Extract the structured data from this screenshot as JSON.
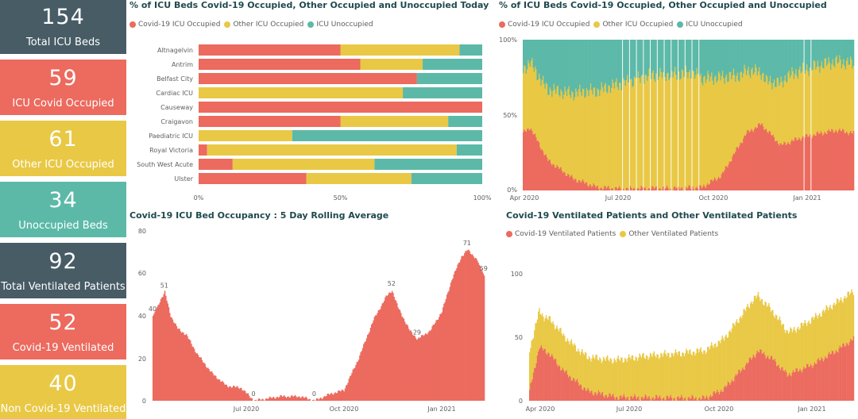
{
  "colors": {
    "covid": "#ec6a5e",
    "other": "#e9c845",
    "unoccupied": "#5cb9a8",
    "dark": "#485c66",
    "title": "#1f4a4e",
    "axis_text": "#605e5c"
  },
  "kpis": [
    {
      "value": "154",
      "label": "Total ICU Beds",
      "color": "#485c66"
    },
    {
      "value": "59",
      "label": "ICU Covid Occupied",
      "color": "#ec6a5e"
    },
    {
      "value": "61",
      "label": "Other ICU Occupied",
      "color": "#e9c845"
    },
    {
      "value": "34",
      "label": "Unoccupied Beds",
      "color": "#5cb9a8"
    },
    {
      "value": "92",
      "label": "Total Ventilated Patients",
      "color": "#485c66"
    },
    {
      "value": "52",
      "label": "Covid-19 Ventilated",
      "color": "#ec6a5e"
    },
    {
      "value": "40",
      "label": "Non Covid-19 Ventilated",
      "color": "#e9c845"
    }
  ],
  "chart_data": [
    {
      "id": "today",
      "type": "bar",
      "orientation": "horizontal",
      "stacked_percent": true,
      "title": "% of ICU Beds Covid-19 Occupied, Other Occupied and Unoccupied Today",
      "legend": [
        "Covid-19 ICU Occupied",
        "Other ICU Occupied",
        "ICU Unoccupied"
      ],
      "categories": [
        "Altnagelvin",
        "Antrim",
        "Belfast City",
        "Cardiac ICU",
        "Causeway",
        "Craigavon",
        "Paediatric ICU",
        "Royal Victoria",
        "South West Acute",
        "Ulster"
      ],
      "series": [
        {
          "name": "Covid-19 ICU Occupied",
          "values": [
            50,
            57,
            77,
            0,
            100,
            50,
            0,
            3,
            12,
            38
          ]
        },
        {
          "name": "Other ICU Occupied",
          "values": [
            42,
            22,
            0,
            72,
            0,
            38,
            33,
            88,
            50,
            37
          ]
        },
        {
          "name": "ICU Unoccupied",
          "values": [
            8,
            21,
            23,
            28,
            0,
            12,
            67,
            9,
            38,
            25
          ]
        }
      ],
      "xticks": [
        "0%",
        "50%",
        "100%"
      ],
      "xlim": [
        0,
        100
      ]
    },
    {
      "id": "history",
      "type": "bar",
      "stacked_percent": true,
      "title": "% of ICU Beds Covid-19 Occupied, Other Occupied and Unoccupied",
      "legend": [
        "Covid-19 ICU Occupied",
        "Other ICU Occupied",
        "ICU Unoccupied"
      ],
      "x_range": [
        "2020-04-01",
        "2021-02-28"
      ],
      "yticks": [
        "0%",
        "50%",
        "100%"
      ],
      "xticks": [
        "Apr 2020",
        "Jul 2020",
        "Oct 2020",
        "Jan 2021"
      ],
      "covid_pct_keypoints": [
        [
          0,
          38
        ],
        [
          7,
          42
        ],
        [
          25,
          20
        ],
        [
          50,
          8
        ],
        [
          75,
          2
        ],
        [
          100,
          1
        ],
        [
          180,
          2
        ],
        [
          200,
          10
        ],
        [
          225,
          38
        ],
        [
          240,
          44
        ],
        [
          260,
          30
        ],
        [
          280,
          35
        ],
        [
          300,
          38
        ],
        [
          316,
          40
        ],
        [
          333,
          38
        ]
      ],
      "other_pct_keypoints": [
        [
          0,
          42
        ],
        [
          20,
          45
        ],
        [
          60,
          60
        ],
        [
          90,
          68
        ],
        [
          130,
          75
        ],
        [
          170,
          76
        ],
        [
          200,
          65
        ],
        [
          220,
          44
        ],
        [
          245,
          32
        ],
        [
          265,
          44
        ],
        [
          290,
          45
        ],
        [
          333,
          46
        ]
      ],
      "gap_days": [
        100,
        107,
        114,
        121,
        128,
        135,
        142,
        149,
        156,
        163,
        170,
        177,
        283,
        290
      ]
    },
    {
      "id": "rolling",
      "type": "area",
      "title": "Covid-19 ICU Bed Occupancy : 5 Day Rolling Average",
      "ylim": [
        0,
        80
      ],
      "yticks": [
        0,
        20,
        40,
        60,
        80
      ],
      "xticks": [
        "Jul 2020",
        "Oct 2020",
        "Jan 2021"
      ],
      "x_range": [
        "2020-03-20",
        "2021-02-28"
      ],
      "keypoints": [
        [
          0,
          40
        ],
        [
          7,
          47
        ],
        [
          12,
          51
        ],
        [
          18,
          40
        ],
        [
          25,
          34
        ],
        [
          34,
          31
        ],
        [
          45,
          22
        ],
        [
          60,
          13
        ],
        [
          75,
          7
        ],
        [
          90,
          6
        ],
        [
          103,
          0
        ],
        [
          130,
          2
        ],
        [
          150,
          2
        ],
        [
          165,
          0
        ],
        [
          180,
          3
        ],
        [
          195,
          5
        ],
        [
          210,
          20
        ],
        [
          225,
          38
        ],
        [
          238,
          49
        ],
        [
          244,
          52
        ],
        [
          250,
          44
        ],
        [
          262,
          33
        ],
        [
          270,
          29
        ],
        [
          283,
          33
        ],
        [
          295,
          42
        ],
        [
          305,
          57
        ],
        [
          315,
          68
        ],
        [
          321,
          71
        ],
        [
          330,
          67
        ],
        [
          338,
          59
        ]
      ],
      "labels": [
        {
          "day": 0,
          "value": 40,
          "text": "40"
        },
        {
          "day": 12,
          "value": 51,
          "text": "51"
        },
        {
          "day": 103,
          "value": 0,
          "text": "0"
        },
        {
          "day": 165,
          "value": 0,
          "text": "0"
        },
        {
          "day": 244,
          "value": 52,
          "text": "52"
        },
        {
          "day": 270,
          "value": 29,
          "text": "29"
        },
        {
          "day": 321,
          "value": 71,
          "text": "71"
        },
        {
          "day": 338,
          "value": 59,
          "text": "59"
        }
      ]
    },
    {
      "id": "ventilated",
      "type": "bar",
      "stacked": true,
      "title": "Covid-19 Ventilated Patients and Other Ventilated Patients",
      "legend": [
        "Covid-19 Ventilated Patients",
        "Other Ventilated Patients"
      ],
      "ylim": [
        0,
        110
      ],
      "yticks": [
        0,
        50,
        100
      ],
      "xticks": [
        "Apr 2020",
        "Jul 2020",
        "Oct 2020",
        "Jan 2021"
      ],
      "x_range": [
        "2020-04-01",
        "2021-02-28"
      ],
      "covid_keypoints": [
        [
          0,
          8
        ],
        [
          10,
          45
        ],
        [
          20,
          40
        ],
        [
          35,
          25
        ],
        [
          60,
          8
        ],
        [
          90,
          3
        ],
        [
          180,
          2
        ],
        [
          200,
          10
        ],
        [
          220,
          28
        ],
        [
          235,
          42
        ],
        [
          250,
          35
        ],
        [
          265,
          22
        ],
        [
          290,
          30
        ],
        [
          315,
          42
        ],
        [
          333,
          52
        ]
      ],
      "other_keypoints": [
        [
          0,
          35
        ],
        [
          15,
          28
        ],
        [
          30,
          30
        ],
        [
          50,
          28
        ],
        [
          80,
          30
        ],
        [
          120,
          35
        ],
        [
          160,
          38
        ],
        [
          200,
          42
        ],
        [
          230,
          48
        ],
        [
          250,
          40
        ],
        [
          270,
          35
        ],
        [
          290,
          38
        ],
        [
          310,
          40
        ],
        [
          333,
          40
        ]
      ]
    }
  ]
}
